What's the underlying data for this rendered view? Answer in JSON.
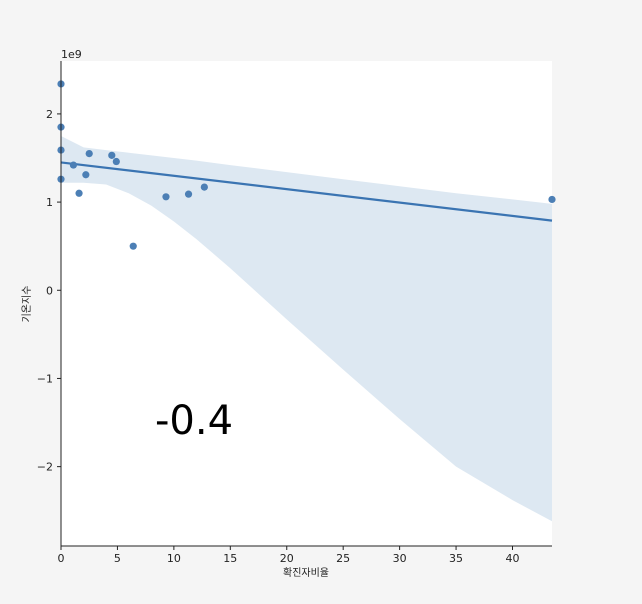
{
  "chart_data": {
    "type": "scatter",
    "xlabel": "확진자비율",
    "ylabel": "기온지수",
    "y_offset_label": "1e9",
    "xlim": [
      0,
      43.5
    ],
    "ylim": [
      -2.9,
      2.6
    ],
    "x_ticks": [
      0,
      5,
      10,
      15,
      20,
      25,
      30,
      35,
      40
    ],
    "y_ticks": [
      -2,
      -1,
      0,
      1,
      2
    ],
    "y_tick_labels": [
      "−2",
      "−1",
      "0",
      "1",
      "2"
    ],
    "grid": false,
    "point_color": "#4c7fb5",
    "line_color": "#3a74b2",
    "band_color": "#dde8f2",
    "points": [
      {
        "x": 0.0,
        "y": 2.34
      },
      {
        "x": 0.0,
        "y": 1.85
      },
      {
        "x": 0.0,
        "y": 1.59
      },
      {
        "x": 0.0,
        "y": 1.26
      },
      {
        "x": 1.1,
        "y": 1.42
      },
      {
        "x": 1.6,
        "y": 1.1
      },
      {
        "x": 2.2,
        "y": 1.31
      },
      {
        "x": 2.5,
        "y": 1.55
      },
      {
        "x": 4.5,
        "y": 1.53
      },
      {
        "x": 4.9,
        "y": 1.46
      },
      {
        "x": 6.4,
        "y": 0.5
      },
      {
        "x": 9.3,
        "y": 1.06
      },
      {
        "x": 11.3,
        "y": 1.09
      },
      {
        "x": 12.7,
        "y": 1.17
      },
      {
        "x": 43.5,
        "y": 1.03
      }
    ],
    "regression": {
      "x": [
        0,
        43.5
      ],
      "y": [
        1.45,
        0.79
      ]
    },
    "confidence_band": {
      "x": [
        0,
        2,
        4,
        6,
        8,
        10,
        12,
        15,
        20,
        25,
        30,
        35,
        40,
        43.5
      ],
      "upper": [
        1.75,
        1.62,
        1.59,
        1.56,
        1.53,
        1.5,
        1.47,
        1.42,
        1.34,
        1.26,
        1.18,
        1.1,
        1.03,
        0.98
      ],
      "lower": [
        1.22,
        1.22,
        1.2,
        1.1,
        0.96,
        0.78,
        0.58,
        0.25,
        -0.33,
        -0.9,
        -1.46,
        -2.0,
        -2.38,
        -2.62
      ]
    },
    "annotation": "-0.4"
  }
}
